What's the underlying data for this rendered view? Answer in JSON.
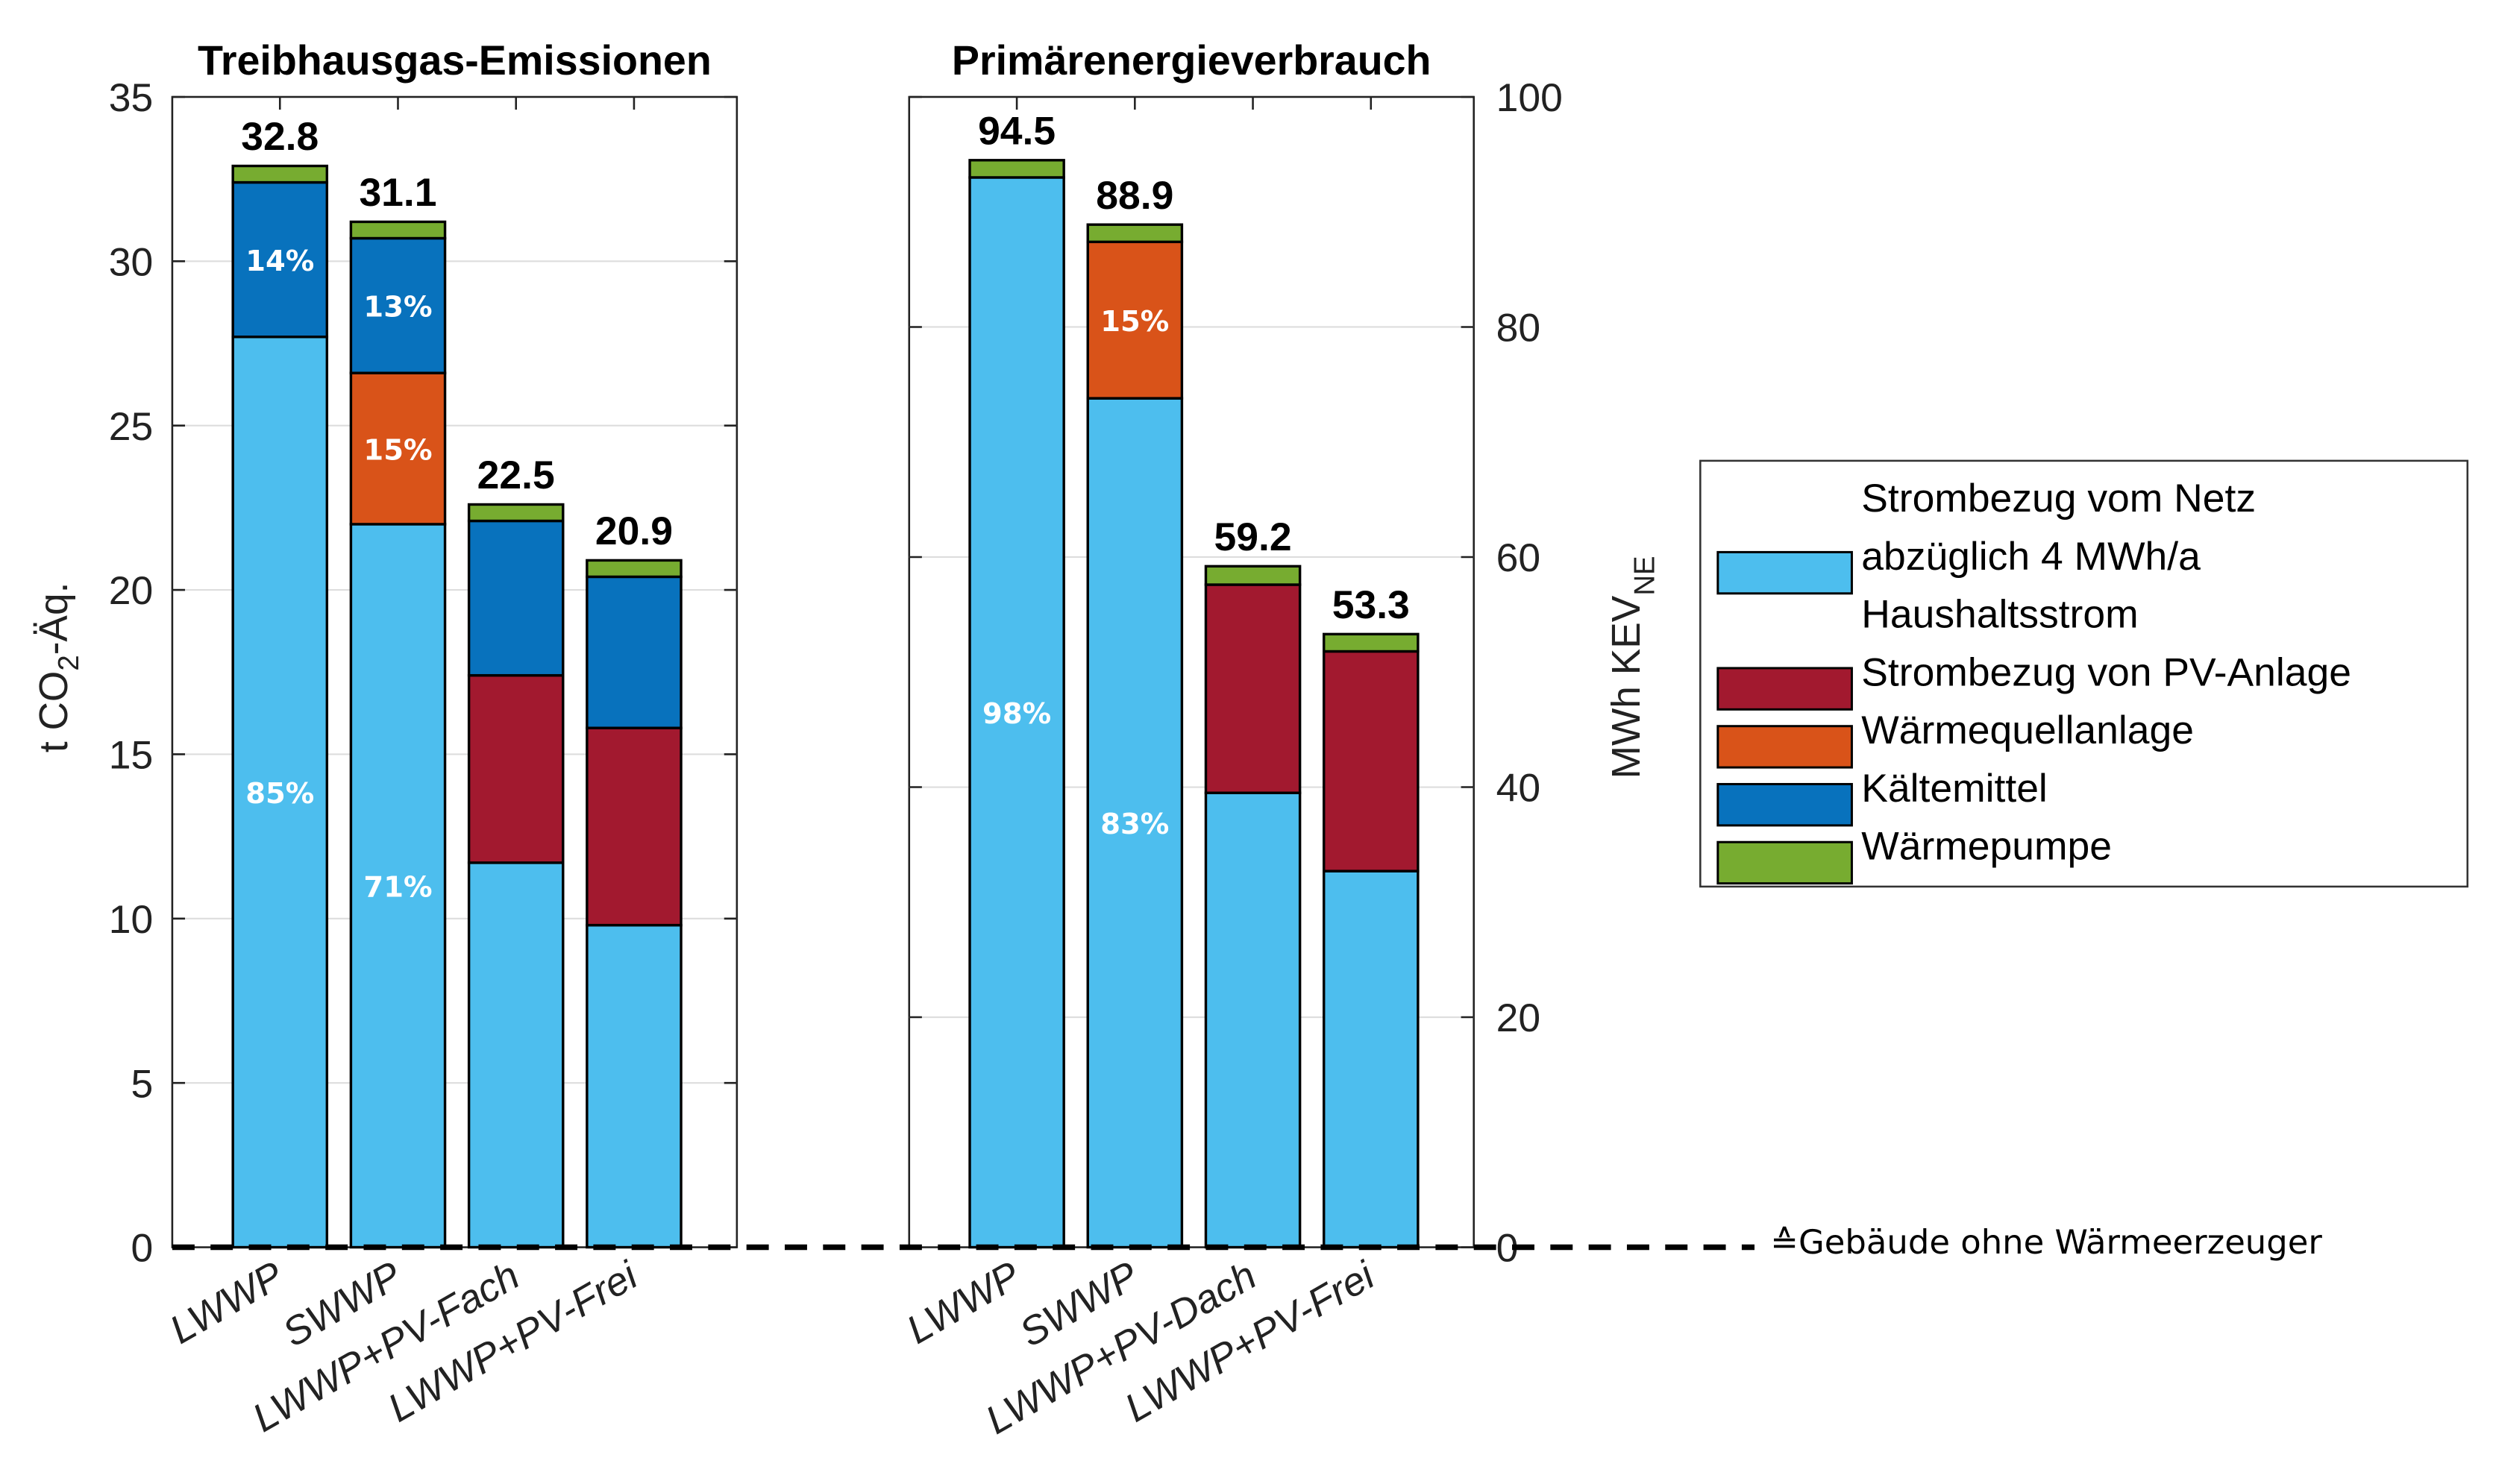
{
  "chart_data": [
    {
      "type": "bar",
      "stacked": true,
      "title": "Treibhausgas-Emissionen",
      "ylabel": "t CO2-Äq.",
      "ylabel_main": "t CO",
      "ylabel_sub": "2",
      "ylabel_tail": "-Äq.",
      "yaxis_side": "left",
      "ylim": [
        0,
        35
      ],
      "yticks": [
        0,
        5,
        10,
        15,
        20,
        25,
        30,
        35
      ],
      "grid": true,
      "categories": [
        "LWWP",
        "SWWP",
        "LWWP+PV-Fach",
        "LWWP+PV-Frei"
      ],
      "totals": [
        "32.8",
        "31.1",
        "22.5",
        "20.9"
      ],
      "series": [
        {
          "name": "Strombezug vom Netz abzüglich 4 MWh/a Haushaltsstrom",
          "key": "netz",
          "values": [
            27.7,
            22.0,
            11.7,
            9.8
          ]
        },
        {
          "name": "Strombezug von PV-Anlage",
          "key": "pv",
          "values": [
            0,
            0,
            5.7,
            6.0
          ]
        },
        {
          "name": "Wärmequellanlage",
          "key": "wq",
          "values": [
            0,
            4.6,
            0,
            0
          ]
        },
        {
          "name": "Kältemittel",
          "key": "kaelte",
          "values": [
            4.7,
            4.1,
            4.7,
            4.6
          ]
        },
        {
          "name": "Wärmepumpe",
          "key": "wp",
          "values": [
            0.5,
            0.5,
            0.5,
            0.5
          ]
        }
      ],
      "percent_labels": [
        {
          "category": 0,
          "series": "netz",
          "text": "85%"
        },
        {
          "category": 0,
          "series": "kaelte",
          "text": "14%"
        },
        {
          "category": 1,
          "series": "netz",
          "text": "71%"
        },
        {
          "category": 1,
          "series": "wq",
          "text": "15%"
        },
        {
          "category": 1,
          "series": "kaelte",
          "text": "13%"
        }
      ]
    },
    {
      "type": "bar",
      "stacked": true,
      "title": "Primärenergieverbrauch",
      "ylabel": "MWh KEV_NE",
      "ylabel_main": "MWh KEV",
      "ylabel_sub": "NE",
      "yaxis_side": "right",
      "ylim": [
        0,
        100
      ],
      "yticks": [
        0,
        20,
        40,
        60,
        80,
        100
      ],
      "grid": true,
      "categories": [
        "LWWP",
        "SWWP",
        "LWWP+PV-Dach",
        "LWWP+PV-Frei"
      ],
      "totals": [
        "94.5",
        "88.9",
        "59.2",
        "53.3"
      ],
      "series": [
        {
          "name": "Strombezug vom Netz abzüglich 4 MWh/a Haushaltsstrom",
          "key": "netz",
          "values": [
            93.0,
            73.8,
            39.5,
            32.7
          ]
        },
        {
          "name": "Strombezug von PV-Anlage",
          "key": "pv",
          "values": [
            0,
            0,
            18.1,
            19.1
          ]
        },
        {
          "name": "Wärmequellanlage",
          "key": "wq",
          "values": [
            0,
            13.6,
            0,
            0
          ]
        },
        {
          "name": "Kältemittel",
          "key": "kaelte",
          "values": [
            0,
            0,
            0,
            0
          ]
        },
        {
          "name": "Wärmepumpe",
          "key": "wp",
          "values": [
            1.5,
            1.5,
            1.6,
            1.5
          ]
        }
      ],
      "percent_labels": [
        {
          "category": 0,
          "series": "netz",
          "text": "98%"
        },
        {
          "category": 1,
          "series": "netz",
          "text": "83%"
        },
        {
          "category": 1,
          "series": "wq",
          "text": "15%"
        }
      ]
    }
  ],
  "colors": {
    "netz": "#4DBEEE",
    "pv": "#A2192F",
    "wq": "#D95319",
    "kaelte": "#0872BD",
    "wp": "#77AC30",
    "grid": "#dddddd",
    "axis": "#222222"
  },
  "legend": {
    "position": "right",
    "entries": [
      {
        "key": "netz",
        "lines": [
          "Strombezug vom Netz",
          "abzüglich 4 MWh/a",
          "Haushaltsstrom"
        ]
      },
      {
        "key": "pv",
        "lines": [
          "Strombezug von PV-Anlage"
        ]
      },
      {
        "key": "wq",
        "lines": [
          "Wärmequellanlage"
        ]
      },
      {
        "key": "kaelte",
        "lines": [
          "Kältemittel"
        ]
      },
      {
        "key": "wp",
        "lines": [
          "Wärmepumpe"
        ]
      }
    ]
  },
  "baseline_note": "≙Gebäude ohne Wärmeerzeuger"
}
